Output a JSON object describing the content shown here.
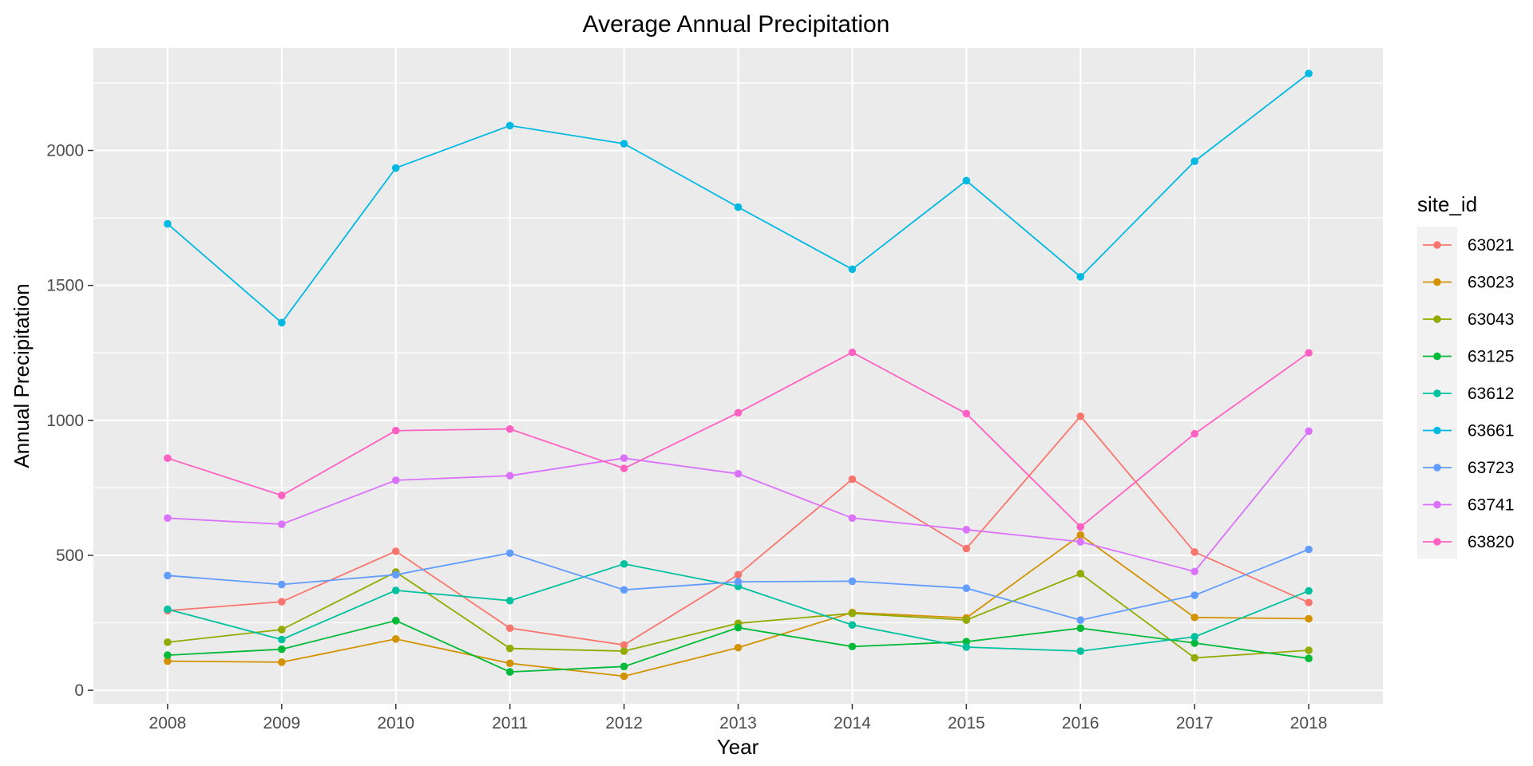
{
  "chart_data": {
    "type": "line",
    "title": "Average Annual Precipitation",
    "xlabel": "Year",
    "ylabel": "Annual Precipitation",
    "x": [
      2008,
      2009,
      2010,
      2011,
      2012,
      2013,
      2014,
      2015,
      2016,
      2017,
      2018
    ],
    "xlim": [
      2007.35,
      2018.65
    ],
    "ylim": [
      -50,
      2380
    ],
    "yticks": [
      0,
      500,
      1000,
      1500,
      2000
    ],
    "grid": true,
    "legend": {
      "title": "site_id",
      "position": "right"
    },
    "series": [
      {
        "name": "63021",
        "color": "#F8766D",
        "values": [
          295,
          328,
          515,
          230,
          168,
          428,
          782,
          525,
          1015,
          512,
          325
        ]
      },
      {
        "name": "63023",
        "color": "#D39200",
        "values": [
          108,
          104,
          190,
          100,
          52,
          158,
          288,
          268,
          575,
          270,
          265
        ]
      },
      {
        "name": "63043",
        "color": "#93AA00",
        "values": [
          178,
          225,
          438,
          155,
          145,
          248,
          285,
          260,
          432,
          120,
          148
        ]
      },
      {
        "name": "63125",
        "color": "#00BA38",
        "values": [
          130,
          152,
          258,
          68,
          88,
          232,
          162,
          180,
          230,
          175,
          118
        ]
      },
      {
        "name": "63612",
        "color": "#00C19F",
        "values": [
          300,
          188,
          370,
          332,
          468,
          385,
          242,
          160,
          145,
          198,
          368
        ]
      },
      {
        "name": "63661",
        "color": "#00B9E3",
        "values": [
          1728,
          1362,
          1935,
          2092,
          2025,
          1790,
          1560,
          1888,
          1532,
          1960,
          2285
        ]
      },
      {
        "name": "63723",
        "color": "#619CFF",
        "values": [
          425,
          392,
          428,
          508,
          372,
          402,
          404,
          378,
          260,
          352,
          522
        ]
      },
      {
        "name": "63741",
        "color": "#DB72FB",
        "values": [
          638,
          615,
          778,
          795,
          860,
          802,
          638,
          595,
          550,
          440,
          960
        ]
      },
      {
        "name": "63820",
        "color": "#FF61C3",
        "values": [
          860,
          722,
          962,
          968,
          822,
          1028,
          1252,
          1025,
          605,
          950,
          1250
        ]
      }
    ]
  }
}
